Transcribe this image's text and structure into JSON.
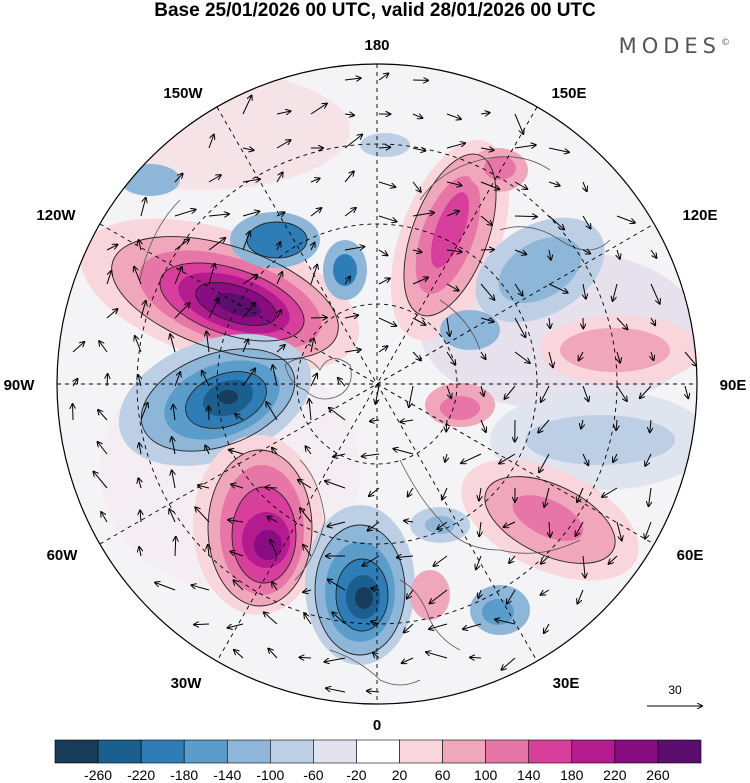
{
  "title": "Base 25/01/2026 00 UTC, valid 28/01/2026 00 UTC",
  "brand": "MODES",
  "brand_mark": "©",
  "longitude_labels": {
    "lon_180": "180",
    "lon_150w": "150W",
    "lon_150e": "150E",
    "lon_120w": "120W",
    "lon_120e": "120E",
    "lon_90w": "90W",
    "lon_90e": "90E",
    "lon_60w": "60W",
    "lon_60e": "60E",
    "lon_30w": "30W",
    "lon_30e": "30E",
    "lon_0": "0"
  },
  "wind_reference": {
    "label": "30"
  },
  "colorbar": {
    "labels": [
      "-260",
      "-220",
      "-180",
      "-140",
      "-100",
      "-60",
      "-20",
      "20",
      "60",
      "100",
      "140",
      "180",
      "220",
      "260"
    ],
    "colors": [
      "#173d5a",
      "#1b5f8e",
      "#2f7db7",
      "#5a9cca",
      "#8eb6d9",
      "#bccfe4",
      "#e2e3ef",
      "#ffffff",
      "#f8d6dc",
      "#f0a6bb",
      "#e875a8",
      "#d83f9d",
      "#b41b8f",
      "#8a0c82",
      "#5a0f6e"
    ]
  },
  "anomalies": [
    {
      "id": "hudson-bay-positive",
      "value": 260
    },
    {
      "id": "greenland-positive",
      "value": 220
    },
    {
      "id": "labrador-negative",
      "value": -240
    },
    {
      "id": "north-atlantic-negative",
      "value": -250
    },
    {
      "id": "bering-positive",
      "value": 180
    },
    {
      "id": "alaska-negative",
      "value": -140
    },
    {
      "id": "russia-positive",
      "value": 120
    },
    {
      "id": "siberia-negative",
      "value": -100
    }
  ]
}
